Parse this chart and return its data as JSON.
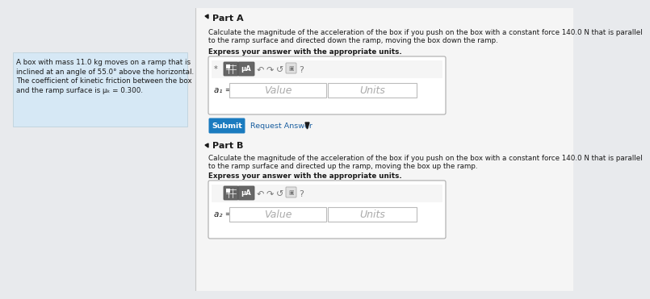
{
  "bg_left": "#e8eaed",
  "bg_right": "#f5f5f5",
  "problem_text_bg": "#d6e8f5",
  "white": "#ffffff",
  "divider_color": "#c8c8c8",
  "text_dark": "#1a1a1a",
  "text_mid": "#333333",
  "text_gray": "#666666",
  "text_placeholder": "#aaaaaa",
  "icon_btn_color": "#777777",
  "input_border": "#bbbbbb",
  "outer_box_border": "#aaaaaa",
  "toolbar_bg": "#e0e0e0",
  "icon_dark_bg": "#555555",
  "submit_btn_color": "#1a7bbf",
  "submit_btn_text_color": "#ffffff",
  "link_color": "#1a5fa0",
  "problem_text_line1": "A box with mass 11.0 kg moves on a ramp that is",
  "problem_text_line2": "inclined at an angle of 55.0° above the horizontal.",
  "problem_text_line3": "The coefficient of kinetic friction between the box",
  "problem_text_line4": "and the ramp surface is μₖ = 0.300.",
  "part_a_header": "Part A",
  "part_a_desc1": "Calculate the magnitude of the acceleration of the box if you push on the box with a constant force 140.0 N that is parallel",
  "part_a_desc2": "to the ramp surface and directed down the ramp, moving the box down the ramp.",
  "part_a_express": "Express your answer with the appropriate units.",
  "part_a_label": "a₁ =",
  "value_placeholder": "Value",
  "units_placeholder": "Units",
  "submit_text": "Submit",
  "request_text": "Request Answer",
  "part_b_header": "Part B",
  "part_b_desc1": "Calculate the magnitude of the acceleration of the box if you push on the box with a constant force 140.0 N that is parallel",
  "part_b_desc2": "to the ramp surface and directed up the ramp, moving the box up the ramp.",
  "part_b_express": "Express your answer with the appropriate units.",
  "part_b_label": "a₂ ="
}
